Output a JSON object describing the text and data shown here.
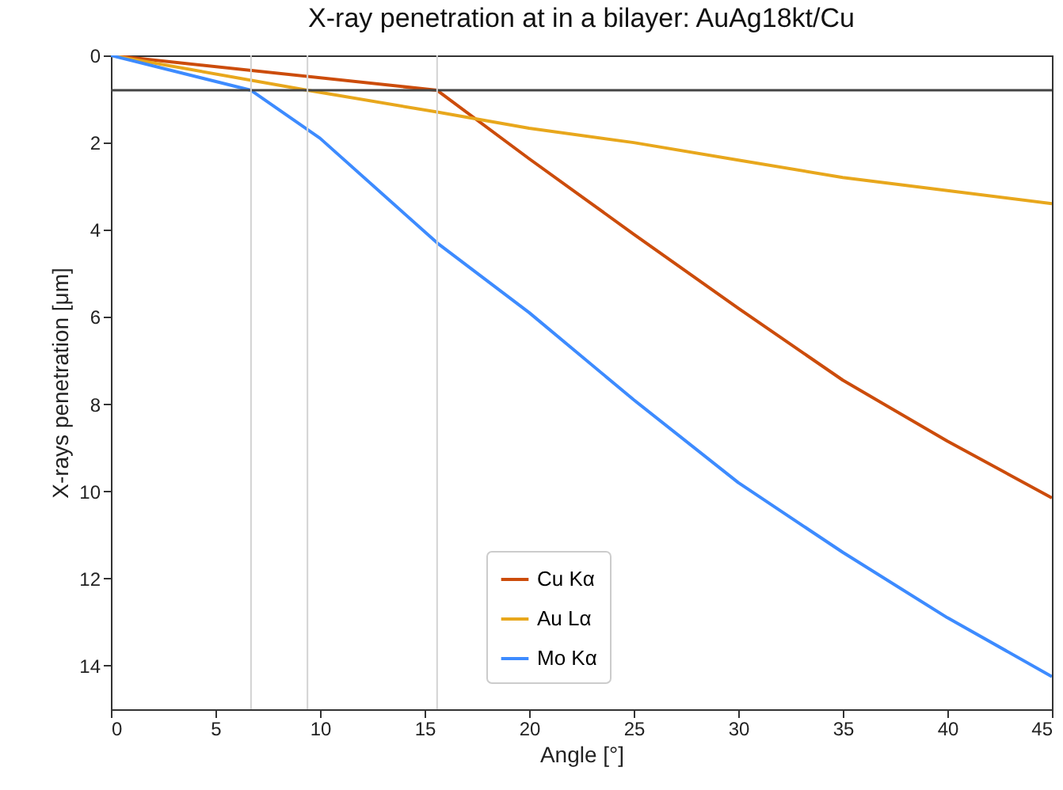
{
  "chart_data": {
    "type": "line",
    "title": "X-ray penetration at in a bilayer: AuAg18kt/Cu",
    "xlabel": "Angle [°]",
    "ylabel": "X-rays penetration [μm]",
    "xlim": [
      0,
      45
    ],
    "xticks": [
      0,
      5,
      10,
      15,
      20,
      25,
      30,
      35,
      40,
      45
    ],
    "ylim": [
      15,
      0
    ],
    "yticks": [
      0,
      2,
      4,
      6,
      8,
      10,
      12,
      14
    ],
    "grid": false,
    "legend": "bottom",
    "series": [
      {
        "name": "Cu Kα",
        "color": "#cc4c0b",
        "x": [
          0,
          15.6,
          20,
          25,
          30,
          35,
          40,
          45
        ],
        "values": [
          0,
          0.8,
          2.37,
          4.1,
          5.8,
          7.45,
          8.85,
          10.15
        ]
      },
      {
        "name": "Au Lα",
        "color": "#e8a71c",
        "x": [
          0,
          9.4,
          15.6,
          20,
          25,
          30,
          35,
          40,
          45
        ],
        "values": [
          0,
          0.8,
          1.3,
          1.67,
          2.0,
          2.4,
          2.8,
          3.1,
          3.4
        ]
      },
      {
        "name": "Mo Kα",
        "color": "#3d8bff",
        "x": [
          0,
          6.7,
          10,
          15.6,
          20,
          25,
          30,
          35,
          40,
          45
        ],
        "values": [
          0,
          0.8,
          1.9,
          4.3,
          5.9,
          7.9,
          9.8,
          11.4,
          12.9,
          14.25
        ]
      }
    ],
    "ref_lines": [
      {
        "axis": "y",
        "value": 0.8,
        "color": "#444444"
      },
      {
        "axis": "x",
        "value": 6.7,
        "color": "#d3d3d3"
      },
      {
        "axis": "x",
        "value": 9.4,
        "color": "#d3d3d3"
      },
      {
        "axis": "x",
        "value": 15.6,
        "color": "#d3d3d3"
      }
    ]
  }
}
